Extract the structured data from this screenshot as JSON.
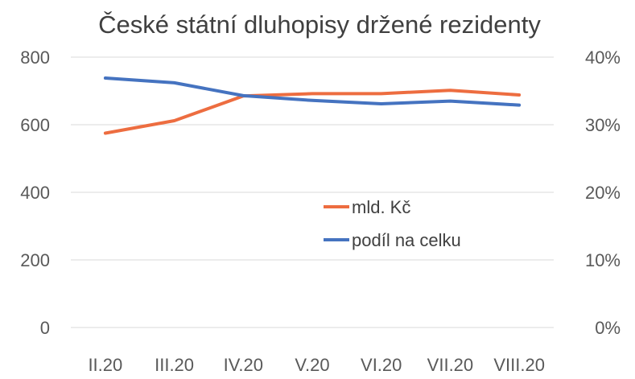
{
  "chart_data": {
    "type": "line",
    "title": "České státní dluhopisy držené rezidenty",
    "categories": [
      "II.20",
      "III.20",
      "IV.20",
      "V.20",
      "VI.20",
      "VII.20",
      "VIII.20"
    ],
    "y_left": {
      "ylim": [
        0,
        800
      ],
      "ticks": [
        "0",
        "200",
        "400",
        "600",
        "800"
      ],
      "tick_values": [
        0,
        200,
        400,
        600,
        800
      ]
    },
    "y_right": {
      "ylim": [
        0,
        40
      ],
      "ticks": [
        "0%",
        "10%",
        "20%",
        "30%",
        "40%"
      ],
      "tick_values": [
        0,
        10,
        20,
        30,
        40
      ]
    },
    "series": [
      {
        "name": "mld. Kč",
        "axis": "left",
        "color": "#ed6d40",
        "values": [
          575,
          612,
          685,
          692,
          692,
          702,
          688
        ]
      },
      {
        "name": "podíl na celku",
        "axis": "right",
        "color": "#4573c0",
        "values": [
          36.9,
          36.2,
          34.3,
          33.6,
          33.1,
          33.5,
          32.9
        ]
      }
    ],
    "grid": true,
    "legend_position": "inside-center-right"
  }
}
